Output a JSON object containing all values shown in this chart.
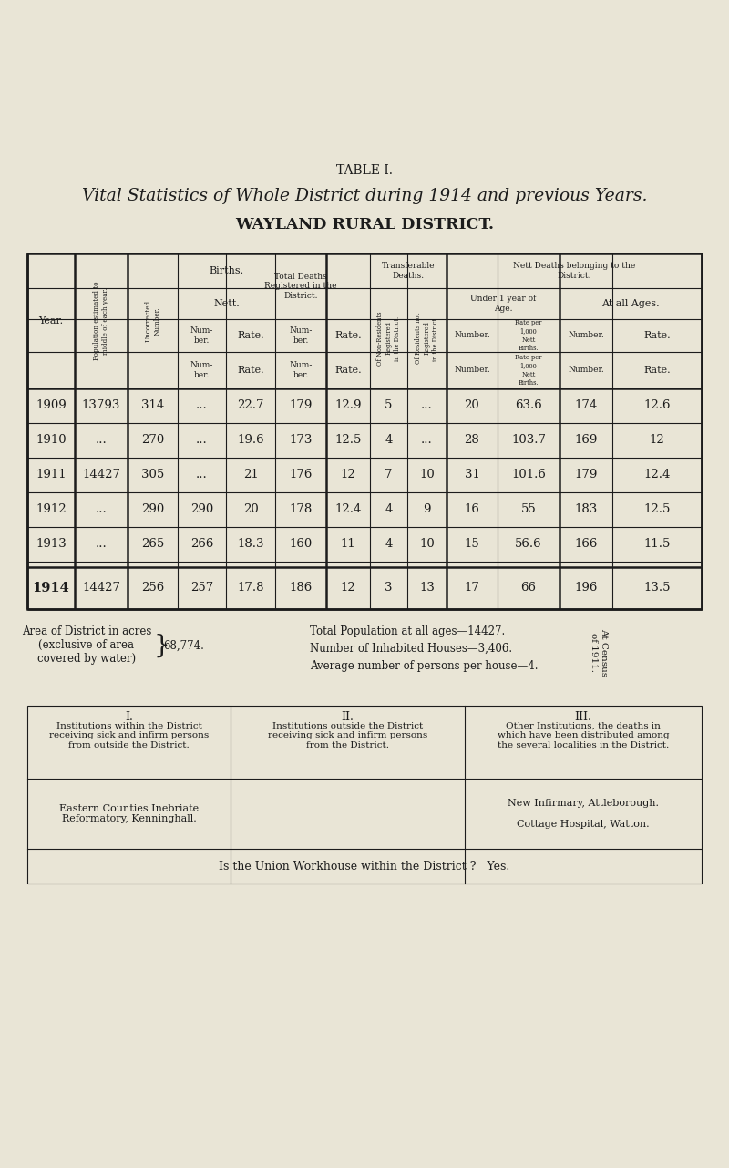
{
  "bg_color": "#e9e5d6",
  "title_label": "TABLE I.",
  "title_main": "Vital Statistics of Whole District during 1914 and previous Years.",
  "title_sub": "WAYLAND RURAL DISTRICT.",
  "table_years": [
    "1909",
    "1910",
    "1911",
    "1912",
    "1913",
    "1914"
  ],
  "table_data": [
    [
      "13793",
      "314",
      "...",
      "22.7",
      "179",
      "12.9",
      "5",
      "...",
      "20",
      "63.6",
      "174",
      "12.6"
    ],
    [
      "...",
      "270",
      "...",
      "19.6",
      "173",
      "12.5",
      "4",
      "...",
      "28",
      "103.7",
      "169",
      "12"
    ],
    [
      "14427",
      "305",
      "...",
      "21",
      "176",
      "12",
      "7",
      "10",
      "31",
      "101.6",
      "179",
      "12.4"
    ],
    [
      "...",
      "290",
      "290",
      "20",
      "178",
      "12.4",
      "4",
      "9",
      "16",
      "55",
      "183",
      "12.5"
    ],
    [
      "...",
      "265",
      "266",
      "18.3",
      "160",
      "11",
      "4",
      "10",
      "15",
      "56.6",
      "166",
      "11.5"
    ],
    [
      "14427",
      "256",
      "257",
      "17.8",
      "186",
      "12",
      "3",
      "13",
      "17",
      "66",
      "196",
      "13.5"
    ]
  ],
  "footer_left_text": "Area of District in acres\n(exclusive of area\ncovered by water)",
  "footer_left_value": "68,774.",
  "footer_right_lines": [
    "Total Population at all ages—14427.",
    "Number of Inhabited Houses—3,406.",
    "Average number of persons per house—4."
  ],
  "footer_rotated": "At Census\nof 1911.",
  "inst_headers": [
    "I.",
    "II.",
    "III."
  ],
  "inst_header_desc": [
    "Institutions within the District\nreceiving sick and infirm persons\nfrom outside the District.",
    "Institutions outside the District\nreceiving sick and infirm persons\nfrom the District.",
    "Other Institutions, the deaths in\nwhich have been distributed among\nthe several localities in the District."
  ],
  "inst_content": [
    "Eastern Counties Inebriate\nReformatory, Kenninghall.",
    "",
    "New Infirmary, Attleborough.\n\nCottage Hospital, Watton."
  ],
  "workhouse_text": "Is the Union Workhouse within the District ?   Yes.",
  "text_color": "#1c1c1c",
  "line_color": "#1c1c1c"
}
